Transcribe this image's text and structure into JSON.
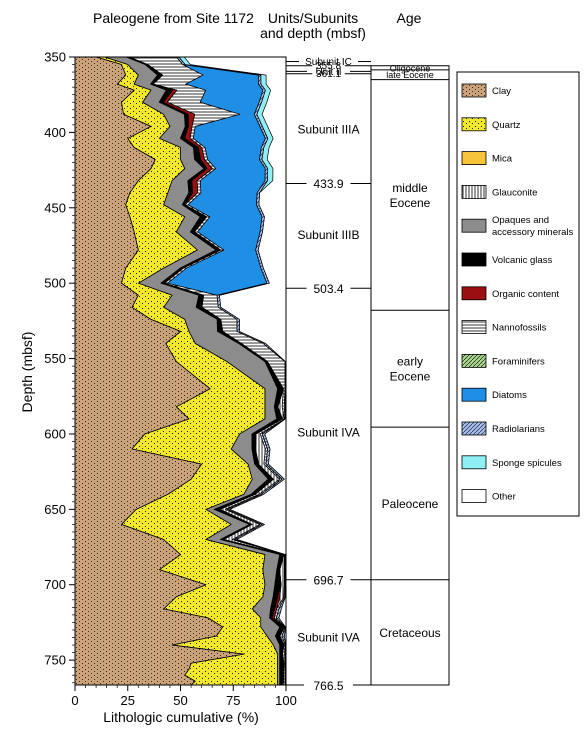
{
  "chart_data": {
    "type": "area",
    "title": "Paleogene from Site 1172",
    "xlabel": "Lithologic cumulative (%)",
    "ylabel": "Depth (mbsf)",
    "xlim": [
      0,
      100
    ],
    "ylim": [
      350,
      766.5
    ],
    "y_reversed": true,
    "x_ticks": [
      0,
      25,
      50,
      75,
      100
    ],
    "y_ticks": [
      350,
      400,
      450,
      500,
      550,
      600,
      650,
      700,
      750
    ],
    "minor_y_step": 5,
    "grid": false,
    "legend_position": "right",
    "series": [
      {
        "name": "Clay",
        "color": "#c9a27a",
        "pattern": "dots",
        "x_upper": [
          10,
          22,
          24,
          20,
          28,
          22,
          23,
          36,
          25,
          28,
          38,
          36,
          30,
          26,
          24,
          26,
          28,
          30,
          24,
          22,
          30,
          27,
          36,
          50,
          43,
          48,
          64,
          48,
          54,
          33,
          27,
          60,
          55,
          44,
          29,
          22,
          42,
          50,
          40,
          62,
          48,
          42,
          63,
          70,
          67,
          46,
          80,
          55,
          54,
          52,
          57,
          55
        ],
        "y": [
          350,
          355,
          362,
          368,
          372,
          380,
          388,
          396,
          404,
          410,
          418,
          424,
          432,
          440,
          448,
          456,
          466,
          478,
          490,
          500,
          508,
          516,
          524,
          532,
          540,
          552,
          570,
          582,
          590,
          600,
          610,
          620,
          630,
          640,
          650,
          660,
          670,
          680,
          690,
          700,
          708,
          716,
          722,
          728,
          734,
          740,
          746,
          752,
          756,
          760,
          764,
          766.5
        ]
      },
      {
        "name": "Quartz",
        "color": "#f2e82a",
        "pattern": "dots",
        "x_upper": [
          14,
          25,
          30,
          28,
          36,
          32,
          42,
          45,
          40,
          50,
          50,
          52,
          46,
          44,
          42,
          52,
          48,
          58,
          42,
          30,
          46,
          42,
          52,
          54,
          57,
          72,
          90,
          90,
          90,
          78,
          74,
          82,
          84,
          80,
          62,
          74,
          62,
          90,
          89,
          90,
          89,
          84,
          88,
          88,
          91,
          94,
          96,
          96,
          96
        ],
        "y": [
          350,
          355,
          362,
          368,
          372,
          380,
          388,
          396,
          404,
          410,
          418,
          424,
          432,
          440,
          448,
          456,
          466,
          478,
          490,
          500,
          508,
          516,
          524,
          532,
          540,
          552,
          570,
          582,
          590,
          600,
          610,
          620,
          630,
          640,
          650,
          660,
          670,
          680,
          690,
          700,
          708,
          716,
          722,
          728,
          734,
          740,
          746,
          752,
          766.5
        ]
      },
      {
        "name": "Mica",
        "color": "#f5c43a",
        "pattern": "solid",
        "x_upper": [],
        "y": []
      },
      {
        "name": "Glauconite",
        "color": "#ffffff",
        "pattern": "vertical-lines",
        "x_upper": [],
        "y": []
      },
      {
        "name": "Opaques and accessory minerals",
        "color": "#8c8c8c",
        "pattern": "solid",
        "x_upper": [],
        "y": []
      },
      {
        "name": "Volcanic glass",
        "color": "#000000",
        "pattern": "solid",
        "x_upper": [],
        "y": []
      },
      {
        "name": "Organic content",
        "color": "#9a1010",
        "pattern": "solid",
        "x_upper": [],
        "y": []
      },
      {
        "name": "Nannofossils",
        "color": "#ffffff",
        "pattern": "horizontal-lines",
        "x_upper": [],
        "y": []
      },
      {
        "name": "Foraminifers",
        "color": "#a9d68c",
        "pattern": "diagonal-lines",
        "x_upper": [],
        "y": []
      },
      {
        "name": "Diatoms",
        "color": "#1f8fe6",
        "pattern": "solid",
        "x_upper": [],
        "y": []
      },
      {
        "name": "Radiolarians",
        "color": "#a9bedf",
        "pattern": "diagonal-lines",
        "x_upper": [],
        "y": []
      },
      {
        "name": "Sponge spicules",
        "color": "#8ef0f4",
        "pattern": "solid",
        "x_upper": [],
        "y": []
      },
      {
        "name": "Other",
        "color": "#ffffff",
        "pattern": "solid",
        "x_upper": [],
        "y": []
      }
    ],
    "units": {
      "header": "Units/Subunits and depth (mbsf)",
      "boundaries": [
        {
          "depth": 353.0,
          "label": "Subunit IC"
        },
        {
          "depth": 355.8,
          "label": "355.8"
        },
        {
          "depth": 359.5,
          "label": "Unit II"
        },
        {
          "depth": 361.1,
          "label": "361.1"
        },
        {
          "depth": 433.9,
          "label": "433.9"
        },
        {
          "depth": 503.4,
          "label": "503.4"
        },
        {
          "depth": 696.7,
          "label": "696.7"
        },
        {
          "depth": 766.5,
          "label": "766.5"
        }
      ],
      "subunits": [
        {
          "label": "Subunit IIIA",
          "depth": 398
        },
        {
          "label": "Subunit IIIB",
          "depth": 468
        },
        {
          "label": "Subunit IVA",
          "depth": 599
        },
        {
          "label": "Subunit IVA",
          "depth": 735
        }
      ]
    },
    "age": {
      "header": "Age",
      "intervals": [
        {
          "label": "Oligocene",
          "top": 355.8,
          "bottom": 358.5
        },
        {
          "label": "late Eocene",
          "top": 358.5,
          "bottom": 365.0
        },
        {
          "label": "middle Eocene",
          "top": 365.0,
          "bottom": 518.0
        },
        {
          "label": "early Eocene",
          "top": 518.0,
          "bottom": 595.5
        },
        {
          "label": "Paleocene",
          "top": 595.5,
          "bottom": 696.7
        },
        {
          "label": "Cretaceous",
          "top": 696.7,
          "bottom": 766.5
        }
      ]
    }
  }
}
